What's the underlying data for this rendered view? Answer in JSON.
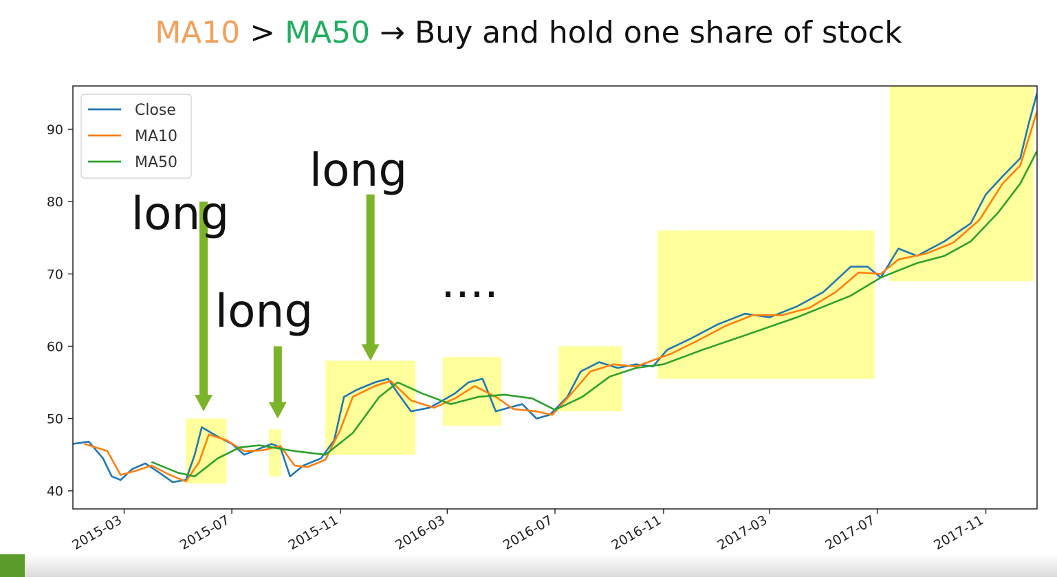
{
  "title": {
    "ma10": "MA10",
    "gt": " > ",
    "ma50": "MA50",
    "arrow": " → ",
    "rest": "Buy and hold one share of stock"
  },
  "colors": {
    "close": "#1f77b4",
    "ma10": "#ff7f0e",
    "ma50": "#2ca02c",
    "highlight": "#ffff8a",
    "arrow": "#7cb32a"
  },
  "chart_data": {
    "type": "line",
    "x_axis": {
      "type": "date",
      "range": [
        "2015-01-02",
        "2017-12-29"
      ],
      "ticks": [
        "2015-03",
        "2015-07",
        "2015-11",
        "2016-03",
        "2016-07",
        "2016-11",
        "2017-03",
        "2017-07",
        "2017-11"
      ]
    },
    "y_axis": {
      "range": [
        37.5,
        96
      ],
      "ticks": [
        40,
        50,
        60,
        70,
        80,
        90
      ]
    },
    "legend": {
      "position": "top-left",
      "entries": [
        "Close",
        "MA10",
        "MA50"
      ]
    },
    "series": [
      {
        "name": "Close",
        "points": [
          [
            "2015-01-02",
            46.5
          ],
          [
            "2015-01-20",
            46.8
          ],
          [
            "2015-02-05",
            44.5
          ],
          [
            "2015-02-15",
            42.0
          ],
          [
            "2015-02-25",
            41.5
          ],
          [
            "2015-03-10",
            43.0
          ],
          [
            "2015-03-25",
            43.8
          ],
          [
            "2015-04-10",
            42.5
          ],
          [
            "2015-04-25",
            41.2
          ],
          [
            "2015-05-10",
            41.5
          ],
          [
            "2015-05-20",
            45.0
          ],
          [
            "2015-05-28",
            48.8
          ],
          [
            "2015-06-15",
            47.5
          ],
          [
            "2015-07-01",
            46.5
          ],
          [
            "2015-07-15",
            45.0
          ],
          [
            "2015-08-01",
            45.8
          ],
          [
            "2015-08-15",
            46.5
          ],
          [
            "2015-08-25",
            46.0
          ],
          [
            "2015-09-05",
            42.0
          ],
          [
            "2015-09-20",
            43.5
          ],
          [
            "2015-10-10",
            44.5
          ],
          [
            "2015-10-25",
            47.0
          ],
          [
            "2015-11-05",
            53.0
          ],
          [
            "2015-11-20",
            54.0
          ],
          [
            "2015-12-10",
            55.0
          ],
          [
            "2015-12-25",
            55.5
          ],
          [
            "2016-01-05",
            53.5
          ],
          [
            "2016-01-20",
            51.0
          ],
          [
            "2016-02-10",
            51.5
          ],
          [
            "2016-02-25",
            52.5
          ],
          [
            "2016-03-10",
            53.5
          ],
          [
            "2016-03-25",
            55.0
          ],
          [
            "2016-04-10",
            55.5
          ],
          [
            "2016-04-25",
            51.0
          ],
          [
            "2016-05-10",
            51.5
          ],
          [
            "2016-05-25",
            52.0
          ],
          [
            "2016-06-10",
            50.0
          ],
          [
            "2016-06-25",
            50.5
          ],
          [
            "2016-07-15",
            53.0
          ],
          [
            "2016-07-30",
            56.5
          ],
          [
            "2016-08-20",
            57.8
          ],
          [
            "2016-09-10",
            57.0
          ],
          [
            "2016-10-01",
            57.5
          ],
          [
            "2016-10-20",
            57.2
          ],
          [
            "2016-11-05",
            59.5
          ],
          [
            "2016-12-01",
            61.0
          ],
          [
            "2017-01-01",
            63.0
          ],
          [
            "2017-02-01",
            64.5
          ],
          [
            "2017-03-01",
            64.0
          ],
          [
            "2017-04-01",
            65.5
          ],
          [
            "2017-05-01",
            67.5
          ],
          [
            "2017-06-01",
            71.0
          ],
          [
            "2017-06-20",
            71.0
          ],
          [
            "2017-07-05",
            69.5
          ],
          [
            "2017-07-25",
            73.5
          ],
          [
            "2017-08-15",
            72.5
          ],
          [
            "2017-09-15",
            74.5
          ],
          [
            "2017-10-15",
            77.0
          ],
          [
            "2017-11-01",
            81.0
          ],
          [
            "2017-11-20",
            83.5
          ],
          [
            "2017-12-10",
            86.0
          ],
          [
            "2017-12-20",
            91.0
          ],
          [
            "2017-12-29",
            95.0
          ]
        ]
      },
      {
        "name": "MA10",
        "points": [
          [
            "2015-01-15",
            46.5
          ],
          [
            "2015-02-10",
            45.5
          ],
          [
            "2015-02-25",
            42.2
          ],
          [
            "2015-03-15",
            42.8
          ],
          [
            "2015-04-01",
            43.5
          ],
          [
            "2015-04-20",
            42.3
          ],
          [
            "2015-05-10",
            41.3
          ],
          [
            "2015-05-25",
            44.0
          ],
          [
            "2015-06-05",
            47.8
          ],
          [
            "2015-06-25",
            47.0
          ],
          [
            "2015-07-15",
            45.5
          ],
          [
            "2015-08-05",
            45.6
          ],
          [
            "2015-08-25",
            46.2
          ],
          [
            "2015-09-10",
            43.5
          ],
          [
            "2015-09-25",
            43.3
          ],
          [
            "2015-10-15",
            44.3
          ],
          [
            "2015-11-01",
            48.5
          ],
          [
            "2015-11-15",
            53.0
          ],
          [
            "2015-12-10",
            54.5
          ],
          [
            "2015-12-28",
            55.2
          ],
          [
            "2016-01-20",
            52.5
          ],
          [
            "2016-02-15",
            51.5
          ],
          [
            "2016-03-10",
            52.8
          ],
          [
            "2016-04-01",
            54.5
          ],
          [
            "2016-04-25",
            53.0
          ],
          [
            "2016-05-15",
            51.3
          ],
          [
            "2016-06-10",
            51.0
          ],
          [
            "2016-06-28",
            50.5
          ],
          [
            "2016-07-20",
            53.5
          ],
          [
            "2016-08-10",
            56.5
          ],
          [
            "2016-09-05",
            57.5
          ],
          [
            "2016-10-01",
            57.2
          ],
          [
            "2016-11-10",
            59.0
          ],
          [
            "2016-12-10",
            60.8
          ],
          [
            "2017-01-10",
            62.8
          ],
          [
            "2017-02-10",
            64.3
          ],
          [
            "2017-03-15",
            64.3
          ],
          [
            "2017-04-15",
            65.3
          ],
          [
            "2017-05-15",
            67.5
          ],
          [
            "2017-06-10",
            70.2
          ],
          [
            "2017-07-05",
            70.0
          ],
          [
            "2017-07-25",
            72.0
          ],
          [
            "2017-08-25",
            72.8
          ],
          [
            "2017-09-25",
            74.3
          ],
          [
            "2017-10-25",
            77.5
          ],
          [
            "2017-11-20",
            82.5
          ],
          [
            "2017-12-10",
            85.0
          ],
          [
            "2017-12-29",
            92.5
          ]
        ]
      },
      {
        "name": "MA50",
        "points": [
          [
            "2015-04-01",
            44.0
          ],
          [
            "2015-05-01",
            42.5
          ],
          [
            "2015-05-20",
            42.0
          ],
          [
            "2015-06-15",
            44.5
          ],
          [
            "2015-07-10",
            46.0
          ],
          [
            "2015-08-01",
            46.3
          ],
          [
            "2015-09-10",
            45.5
          ],
          [
            "2015-10-15",
            45.0
          ],
          [
            "2015-11-15",
            48.0
          ],
          [
            "2015-12-15",
            53.0
          ],
          [
            "2016-01-05",
            55.0
          ],
          [
            "2016-02-01",
            53.5
          ],
          [
            "2016-03-05",
            52.0
          ],
          [
            "2016-04-05",
            53.0
          ],
          [
            "2016-05-05",
            53.3
          ],
          [
            "2016-06-05",
            52.8
          ],
          [
            "2016-07-01",
            51.2
          ],
          [
            "2016-08-01",
            53.0
          ],
          [
            "2016-09-01",
            55.8
          ],
          [
            "2016-10-01",
            57.0
          ],
          [
            "2016-11-01",
            57.5
          ],
          [
            "2016-12-15",
            59.5
          ],
          [
            "2017-02-01",
            61.5
          ],
          [
            "2017-04-01",
            64.0
          ],
          [
            "2017-06-01",
            67.0
          ],
          [
            "2017-07-05",
            69.5
          ],
          [
            "2017-08-15",
            71.5
          ],
          [
            "2017-09-15",
            72.5
          ],
          [
            "2017-10-15",
            74.5
          ],
          [
            "2017-11-15",
            78.5
          ],
          [
            "2017-12-10",
            82.5
          ],
          [
            "2017-12-29",
            87.0
          ]
        ]
      }
    ],
    "highlight_regions": [
      {
        "x0": "2015-05-10",
        "x1": "2015-06-25",
        "y0": 41,
        "y1": 50
      },
      {
        "x0": "2015-08-12",
        "x1": "2015-08-26",
        "y0": 42,
        "y1": 48.5
      },
      {
        "x0": "2015-10-15",
        "x1": "2016-01-25",
        "y0": 45,
        "y1": 58
      },
      {
        "x0": "2016-02-25",
        "x1": "2016-05-01",
        "y0": 49,
        "y1": 58.5
      },
      {
        "x0": "2016-07-05",
        "x1": "2016-09-15",
        "y0": 51,
        "y1": 60
      },
      {
        "x0": "2016-10-25",
        "x1": "2017-06-28",
        "y0": 55.5,
        "y1": 76
      },
      {
        "x0": "2017-07-15",
        "x1": "2017-12-25",
        "y0": 69,
        "y1": 96
      }
    ],
    "annotations": [
      {
        "text": "long",
        "arrow_x": "2015-05-30",
        "arrow_from": 80,
        "arrow_to": 51
      },
      {
        "text": "long",
        "arrow_x": "2015-08-22",
        "arrow_from": 60,
        "arrow_to": 50
      },
      {
        "text": "long",
        "arrow_x": "2015-12-05",
        "arrow_from": 81,
        "arrow_to": 58
      },
      {
        "text": "....",
        "arrow_x": "",
        "arrow_from": null,
        "arrow_to": null
      }
    ]
  }
}
